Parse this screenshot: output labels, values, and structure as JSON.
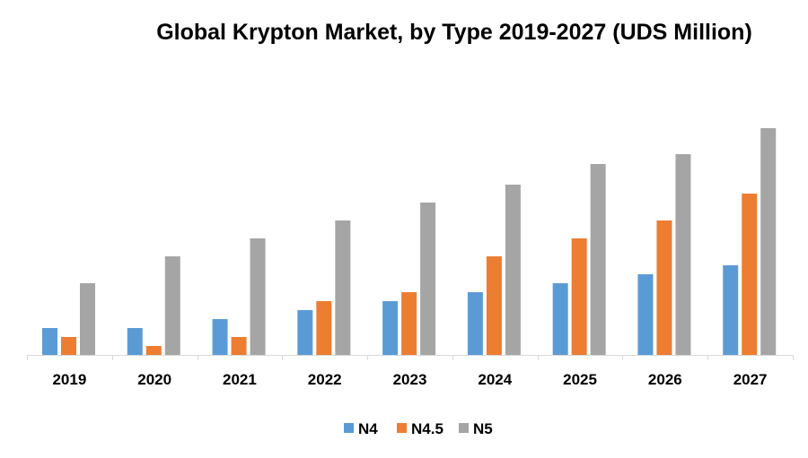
{
  "chart_data": {
    "type": "bar",
    "title": "Global Krypton Market, by Type 2019-2027 (UDS Million)",
    "xlabel": "",
    "ylabel": "",
    "categories": [
      "2019",
      "2020",
      "2021",
      "2022",
      "2023",
      "2024",
      "2025",
      "2026",
      "2027"
    ],
    "series": [
      {
        "name": "N4",
        "color": "#5b9bd5",
        "values": [
          3,
          3,
          4,
          5,
          6,
          7,
          8,
          9,
          10
        ]
      },
      {
        "name": "N4.5",
        "color": "#ed7d31",
        "values": [
          2,
          1,
          2,
          6,
          7,
          11,
          13,
          15,
          18
        ]
      },
      {
        "name": "N5",
        "color": "#a5a5a5",
        "values": [
          8,
          11,
          13,
          15,
          17,
          19,
          21.3,
          22.4,
          25.3
        ]
      }
    ],
    "ylim": [
      0,
      30
    ],
    "grid": false,
    "legend_position": "bottom"
  }
}
